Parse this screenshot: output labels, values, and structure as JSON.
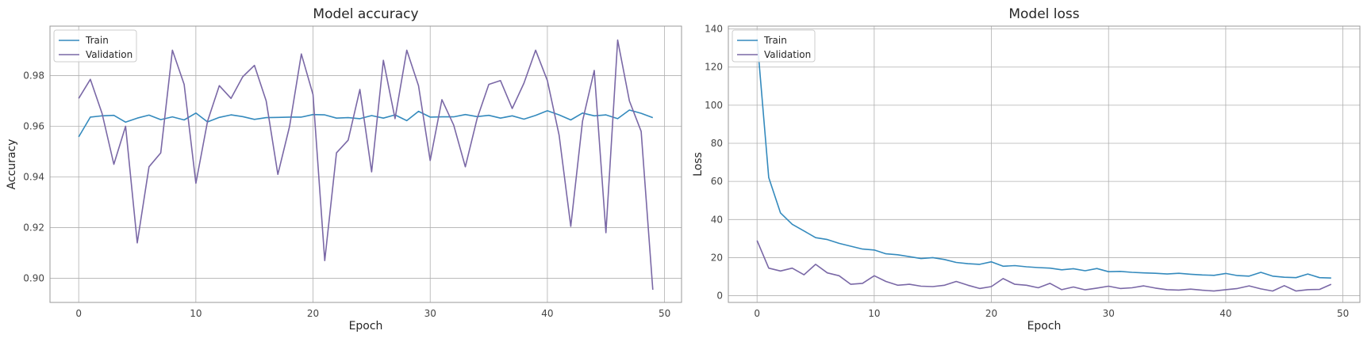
{
  "chart_data": [
    {
      "type": "line",
      "title": "Model accuracy",
      "xlabel": "Epoch",
      "ylabel": "Accuracy",
      "xlim": [
        -2.45,
        51.45
      ],
      "ylim": [
        0.8905,
        0.9995
      ],
      "xticks": [
        0,
        10,
        20,
        30,
        40,
        50
      ],
      "yticks": [
        0.9,
        0.92,
        0.94,
        0.96,
        0.98
      ],
      "ytick_labels": [
        "0.90",
        "0.92",
        "0.94",
        "0.96",
        "0.98"
      ],
      "grid": true,
      "legend": "top-left",
      "x": [
        0,
        1,
        2,
        3,
        4,
        5,
        6,
        7,
        8,
        9,
        10,
        11,
        12,
        13,
        14,
        15,
        16,
        17,
        18,
        19,
        20,
        21,
        22,
        23,
        24,
        25,
        26,
        27,
        28,
        29,
        30,
        31,
        32,
        33,
        34,
        35,
        36,
        37,
        38,
        39,
        40,
        41,
        42,
        43,
        44,
        45,
        46,
        47,
        48,
        49
      ],
      "series": [
        {
          "name": "Train",
          "color": "#348abd",
          "values": [
            0.9558,
            0.9636,
            0.9641,
            0.9643,
            0.9616,
            0.9632,
            0.9644,
            0.9626,
            0.9637,
            0.9625,
            0.9652,
            0.9617,
            0.9635,
            0.9645,
            0.9638,
            0.9627,
            0.9634,
            0.9635,
            0.9636,
            0.9636,
            0.9646,
            0.9645,
            0.9632,
            0.9634,
            0.963,
            0.9642,
            0.9632,
            0.9645,
            0.9622,
            0.9659,
            0.9636,
            0.9637,
            0.9637,
            0.9646,
            0.9638,
            0.9643,
            0.9632,
            0.9641,
            0.9628,
            0.9643,
            0.9661,
            0.9645,
            0.9625,
            0.9652,
            0.9641,
            0.9645,
            0.963,
            0.9664,
            0.9651,
            0.9634
          ]
        },
        {
          "name": "Validation",
          "color": "#7a68a6",
          "values": [
            0.971,
            0.9785,
            0.965,
            0.945,
            0.96,
            0.914,
            0.944,
            0.9495,
            0.99,
            0.9765,
            0.9375,
            0.962,
            0.976,
            0.971,
            0.9795,
            0.984,
            0.97,
            0.941,
            0.96,
            0.9885,
            0.9725,
            0.907,
            0.9495,
            0.9545,
            0.9745,
            0.942,
            0.986,
            0.963,
            0.99,
            0.976,
            0.9465,
            0.9705,
            0.9605,
            0.944,
            0.963,
            0.9765,
            0.978,
            0.967,
            0.977,
            0.99,
            0.978,
            0.9565,
            0.9205,
            0.962,
            0.982,
            0.918,
            0.994,
            0.97,
            0.958,
            0.8955
          ]
        }
      ]
    },
    {
      "type": "line",
      "title": "Model loss",
      "xlabel": "Epoch",
      "ylabel": "Loss",
      "xlim": [
        -2.45,
        51.45
      ],
      "ylim": [
        -3.5,
        141.5
      ],
      "xticks": [
        0,
        10,
        20,
        30,
        40,
        50
      ],
      "yticks": [
        0,
        20,
        40,
        60,
        80,
        100,
        120,
        140
      ],
      "ytick_labels": [
        "0",
        "20",
        "40",
        "60",
        "80",
        "100",
        "120",
        "140"
      ],
      "grid": true,
      "legend": "top-left",
      "x": [
        0,
        1,
        2,
        3,
        4,
        5,
        6,
        7,
        8,
        9,
        10,
        11,
        12,
        13,
        14,
        15,
        16,
        17,
        18,
        19,
        20,
        21,
        22,
        23,
        24,
        25,
        26,
        27,
        28,
        29,
        30,
        31,
        32,
        33,
        34,
        35,
        36,
        37,
        38,
        39,
        40,
        41,
        42,
        43,
        44,
        45,
        46,
        47,
        48,
        49
      ],
      "series": [
        {
          "name": "Train",
          "color": "#348abd",
          "values": [
            135,
            62,
            43.5,
            37.5,
            34,
            30.5,
            29.5,
            27.5,
            26,
            24.5,
            24,
            22,
            21.5,
            20.5,
            19.5,
            20,
            19,
            17.5,
            16.8,
            16.5,
            17.8,
            15.5,
            15.8,
            15.2,
            14.8,
            14.5,
            13.6,
            14.2,
            13.1,
            14.3,
            12.6,
            12.8,
            12.3,
            12,
            11.8,
            11.4,
            11.8,
            11.3,
            10.9,
            10.7,
            11.7,
            10.6,
            10.3,
            12.3,
            10.3,
            9.7,
            9.5,
            11.4,
            9.5,
            9.3
          ]
        },
        {
          "name": "Validation",
          "color": "#7a68a6",
          "values": [
            29,
            14.5,
            13,
            14.5,
            11,
            16.5,
            12,
            10.5,
            6,
            6.5,
            10.5,
            7.5,
            5.5,
            6,
            5,
            4.8,
            5.5,
            7.5,
            5.5,
            3.8,
            4.8,
            9,
            6,
            5.5,
            4.2,
            6.5,
            3.2,
            4.6,
            3.1,
            4,
            5,
            3.8,
            4.2,
            5.2,
            4,
            3.2,
            3,
            3.5,
            2.9,
            2.5,
            3.2,
            3.8,
            5.2,
            3.6,
            2.5,
            5.3,
            2.5,
            3.2,
            3.3,
            6
          ]
        }
      ]
    }
  ]
}
